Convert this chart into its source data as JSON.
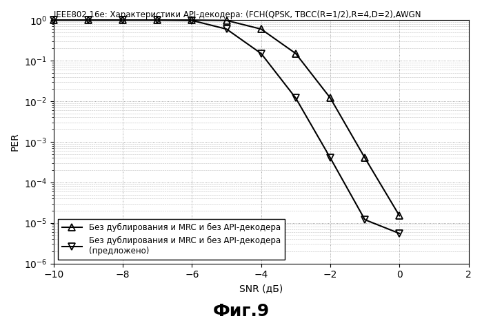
{
  "title": "IEEE802.16e: Характеристики API-декодера: (FCH(QPSK, TBCC(R=1/2),R=4,D=2),AWGN",
  "xlabel": "SNR (дБ)",
  "ylabel": "PER",
  "fig_label": "Фиг.9",
  "xlim": [
    -10,
    2
  ],
  "ylim_log": [
    -6,
    0
  ],
  "xticks": [
    -10,
    -8,
    -6,
    -4,
    -2,
    0,
    2
  ],
  "series1": {
    "label": "Без дублирования и MRC и без API-декодера",
    "snr": [
      -10,
      -9,
      -8,
      -7,
      -6,
      -5,
      -4,
      -3,
      -2,
      -1,
      0
    ],
    "per": [
      1.0,
      1.0,
      1.0,
      1.0,
      1.0,
      0.98,
      0.6,
      0.15,
      0.012,
      0.0004,
      1.5e-05
    ],
    "marker": "^",
    "color": "#000000",
    "linewidth": 1.5
  },
  "series2": {
    "label": "Без дублирования и MRC и без API-декодера\n(предложено)",
    "snr": [
      -10,
      -9,
      -8,
      -7,
      -6,
      -5,
      -4,
      -3,
      -2,
      -1,
      0
    ],
    "per": [
      1.0,
      1.0,
      1.0,
      1.0,
      0.98,
      0.6,
      0.15,
      0.012,
      0.0004,
      1.2e-05,
      5.5e-06
    ],
    "marker": "v",
    "color": "#000000",
    "linewidth": 1.5
  },
  "background_color": "#ffffff",
  "grid_color": "#888888",
  "title_fontsize": 8.5,
  "axis_fontsize": 10,
  "legend_fontsize": 8.5,
  "fig_label_fontsize": 18
}
